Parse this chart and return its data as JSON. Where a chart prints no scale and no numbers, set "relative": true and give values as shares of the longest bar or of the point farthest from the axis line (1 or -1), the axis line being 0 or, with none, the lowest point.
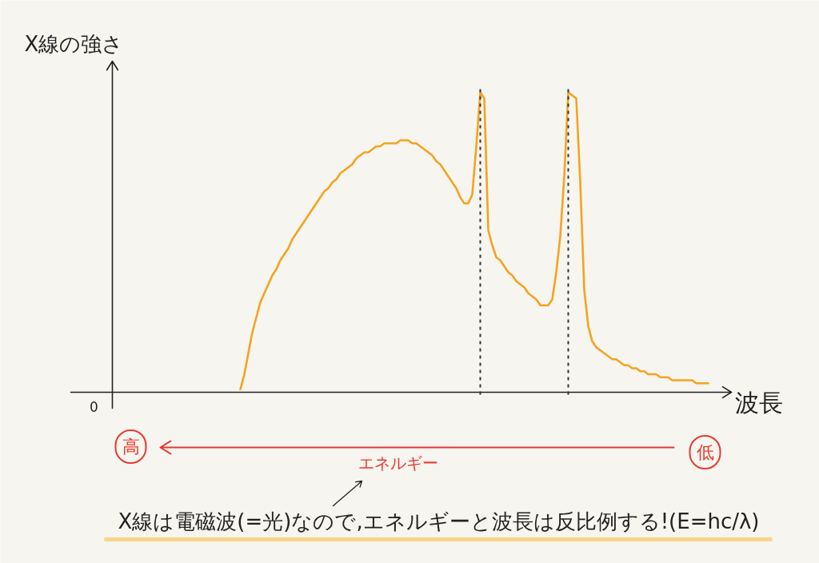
{
  "chart_data": {
    "type": "line",
    "relative": true,
    "xlabel": "波長",
    "ylabel": "X線の強さ",
    "line_style": "solid",
    "categories": [
      null,
      null,
      null,
      null,
      null,
      null,
      null,
      null,
      null,
      null,
      null,
      null,
      null,
      null,
      null,
      null,
      null,
      null,
      null,
      null,
      null,
      null,
      null,
      null,
      null,
      null,
      null,
      null,
      null,
      null,
      null,
      null,
      null,
      null,
      null,
      null,
      null,
      null,
      null,
      null,
      null,
      null,
      null,
      null,
      null,
      null,
      null,
      null,
      null,
      null,
      null,
      null,
      null,
      null,
      null,
      null,
      null,
      null,
      null,
      null,
      null,
      null,
      null,
      null,
      null,
      null,
      null,
      null,
      null,
      null,
      null,
      null,
      null,
      null,
      null,
      null,
      null,
      null,
      null,
      null,
      null,
      null,
      null,
      null,
      null,
      null,
      null,
      null,
      null,
      null,
      null,
      null,
      null,
      null,
      null,
      null,
      null,
      null,
      null,
      null,
      null,
      null,
      null,
      null,
      null,
      null,
      null,
      null,
      null,
      null,
      null,
      null,
      null,
      null,
      null,
      null,
      null,
      null,
      null,
      null,
      null,
      null,
      null,
      null,
      null,
      null,
      null,
      null,
      null,
      null,
      null,
      null,
      null,
      null,
      null,
      null,
      null,
      null,
      null,
      null,
      null,
      null,
      null,
      null,
      null,
      null,
      null,
      null,
      null,
      null
    ],
    "series": [
      {
        "color": "#f5a31f",
        "values": [
          null,
          null,
          null,
          null,
          null,
          null,
          null,
          null,
          null,
          null,
          null,
          null,
          null,
          null,
          null,
          null,
          null,
          null,
          null,
          null,
          null,
          null,
          null,
          null,
          null,
          null,
          null,
          null,
          null,
          null,
          null,
          null,
          0.01,
          0.06,
          0.13,
          0.2,
          0.25,
          0.3,
          0.33,
          0.36,
          0.39,
          0.41,
          0.44,
          0.46,
          0.48,
          0.51,
          0.53,
          0.55,
          0.57,
          0.59,
          0.61,
          0.63,
          0.65,
          0.67,
          0.68,
          0.7,
          0.71,
          0.73,
          0.74,
          0.75,
          0.76,
          0.78,
          0.79,
          0.8,
          0.8,
          0.81,
          0.82,
          0.82,
          0.83,
          0.83,
          0.83,
          0.83,
          0.84,
          0.84,
          0.84,
          0.83,
          0.83,
          0.82,
          0.81,
          0.8,
          0.79,
          0.77,
          0.76,
          0.74,
          0.72,
          0.7,
          0.68,
          0.65,
          0.63,
          0.63,
          0.66,
          0.82,
          1.0,
          0.98,
          0.54,
          0.49,
          0.45,
          0.44,
          0.42,
          0.4,
          0.39,
          0.37,
          0.36,
          0.35,
          0.33,
          0.32,
          0.31,
          0.29,
          0.29,
          0.29,
          0.31,
          0.4,
          0.52,
          0.72,
          1.0,
          0.99,
          0.98,
          0.7,
          0.34,
          0.22,
          0.17,
          0.15,
          0.14,
          0.13,
          0.12,
          0.11,
          0.11,
          0.1,
          0.09,
          0.09,
          0.08,
          0.08,
          0.07,
          0.07,
          0.06,
          0.06,
          0.06,
          0.05,
          0.05,
          0.05,
          0.04,
          0.04,
          0.04,
          0.04,
          0.04,
          0.04,
          0.03,
          0.03,
          0.03,
          0.03
        ]
      }
    ],
    "annotations": [
      "0",
      "高",
      "低",
      "エネルギー",
      "X線は電磁波(=光)なので,エネルギーと波長は反比例する!(E=hc/λ)"
    ]
  }
}
